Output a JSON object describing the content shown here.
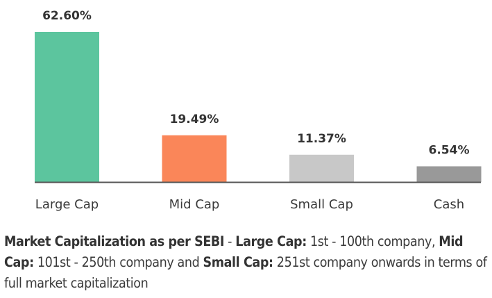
{
  "chart_data": {
    "type": "bar",
    "title": "",
    "xlabel": "",
    "ylabel": "",
    "ylim": [
      0,
      62.6
    ],
    "grid": false,
    "categories": [
      "Large Cap",
      "Mid Cap",
      "Small Cap",
      "Cash"
    ],
    "values": [
      62.6,
      19.49,
      11.37,
      6.54
    ],
    "data_labels": [
      "62.60%",
      "19.49%",
      "11.37%",
      "6.54%"
    ],
    "colors": [
      "#5cc59e",
      "#fa8659",
      "#c8c8c8",
      "#999999"
    ],
    "axis_color": "#555555"
  },
  "note": {
    "part1_bold": "Market Capitalization as per SEBI",
    "part2": " - ",
    "part3_bold": "Large Cap:",
    "part4": " 1st - 100th company, ",
    "part5_bold": "Mid Cap:",
    "part6": " 101st - 250th company and ",
    "part7_bold": "Small Cap:",
    "part8": " 251st company onwards in terms of full market capitalization"
  }
}
